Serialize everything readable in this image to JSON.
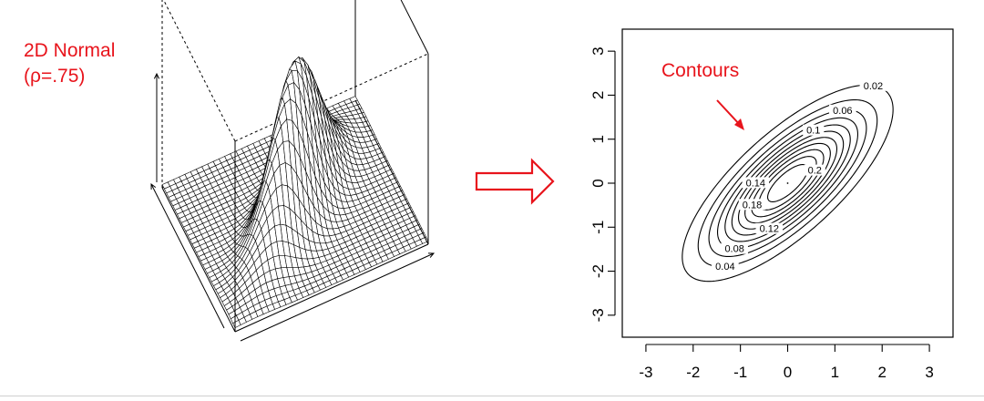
{
  "annotations": {
    "title_line1": "2D Normal",
    "title_line2": "(ρ=.75)",
    "contours_label": "Contours",
    "accent_color": "#e8141c"
  },
  "chart_data": [
    {
      "type": "surface",
      "description_kind": "3d-perspective",
      "z_function": "bivariate normal density",
      "rho": 0.75
    },
    {
      "type": "contour",
      "rho": 0.75,
      "xlim": [
        -3.5,
        3.5
      ],
      "ylim": [
        -3.5,
        3.5
      ],
      "x_ticks": [
        "-3",
        "-2",
        "-1",
        "0",
        "1",
        "2",
        "3"
      ],
      "y_ticks": [
        "-3",
        "-2",
        "-1",
        "0",
        "1",
        "2",
        "3"
      ],
      "levels": [
        0.02,
        0.04,
        0.06,
        0.08,
        0.1,
        0.12,
        0.14,
        0.16,
        0.18,
        0.2,
        0.22
      ],
      "visible_level_labels": [
        {
          "text": "0.02",
          "level": 0.02,
          "angle_deg": 15
        },
        {
          "text": "0.04",
          "level": 0.04,
          "angle_deg": 205
        },
        {
          "text": "0.06",
          "level": 0.06,
          "angle_deg": 25
        },
        {
          "text": "0.08",
          "level": 0.08,
          "angle_deg": 200
        },
        {
          "text": "0.1",
          "level": 0.1,
          "angle_deg": 45
        },
        {
          "text": "0.12",
          "level": 0.12,
          "angle_deg": 230
        },
        {
          "text": "0.14",
          "level": 0.14,
          "angle_deg": 110
        },
        {
          "text": "0.18",
          "level": 0.18,
          "angle_deg": 150
        },
        {
          "text": "0.2",
          "level": 0.2,
          "angle_deg": 320
        }
      ]
    }
  ]
}
